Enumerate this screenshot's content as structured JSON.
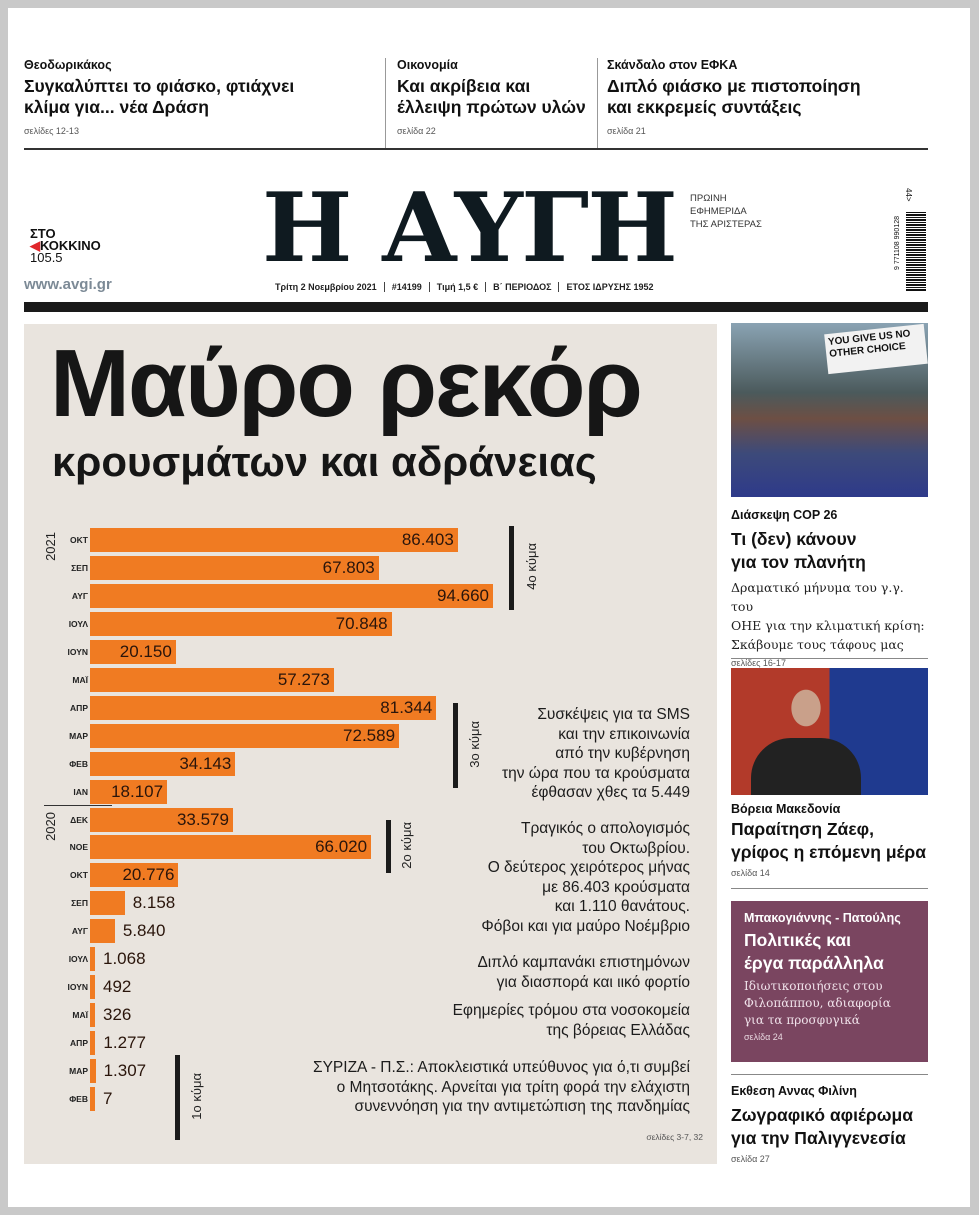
{
  "top_stories": [
    {
      "kicker": "Θεοδωρικάκος",
      "headline_1": "Συγκαλύπτει το φιάσκο, φτιάχνει",
      "headline_2": "κλίμα για... νέα Δράση",
      "ref": "σελίδες 12-13"
    },
    {
      "kicker": "Οικονομία",
      "headline_1": "Και ακρίβεια και",
      "headline_2": "έλλειψη πρώτων υλών",
      "ref": "σελίδα 22"
    },
    {
      "kicker": "Σκάνδαλο στον ΕΦΚΑ",
      "headline_1": "Διπλό φιάσκο με πιστοποίηση",
      "headline_2": "και εκκρεμείς συντάξεις",
      "ref": "σελίδα 21"
    }
  ],
  "masthead": {
    "title": "Η ΑΥΓΗ",
    "tagline": [
      "ΠΡΩΙΝΗ",
      "ΕΦΗΜΕΡΙΔΑ",
      "ΤΗΣ ΑΡΙΣΤΕΡΑΣ"
    ],
    "radio_logo": [
      "ΣΤΟ",
      "ΚΟΚΚΙΝΟ",
      "105.5"
    ],
    "website": "www.avgi.gr",
    "info": [
      "Τρίτη 2 Νοεμβρίου 2021",
      "#14199",
      "Τιμή 1,5 €",
      "Β΄ ΠΕΡΙΟΔΟΣ",
      "ΕΤΟΣ ΙΔΡΥΣΗΣ 1952"
    ],
    "barcode_digits": "9 771108 990128",
    "barcode_issue": "44>"
  },
  "main": {
    "headline": "Μαύρο ρεκόρ",
    "subheadline": "κρουσμάτων και αδράνειας",
    "blurbs": [
      [
        "Συσκέψεις για τα SMS",
        "και την επικοινωνία",
        "από την κυβέρνηση",
        "την ώρα που τα κρούσματα",
        "έφθασαν χθες τα 5.449"
      ],
      [
        "Τραγικός ο απολογισμός",
        "του Οκτωβρίου.",
        "Ο δεύτερος χειρότερος μήνας",
        "με 86.403 κρούσματα",
        "και 1.110 θανάτους.",
        "Φόβοι και για μαύρο Νοέμβριο"
      ],
      [
        "Διπλό καμπανάκι επιστημόνων",
        "για διασπορά και ιικό φορτίο"
      ],
      [
        "Εφημερίες τρόμου στα νοσοκομεία",
        "της βόρειας Ελλάδας"
      ],
      [
        "ΣΥΡΙΖΑ - Π.Σ.: Αποκλειστικά υπεύθυνος για ό,τι συμβεί",
        "ο Μητσοτάκης. Αρνείται για τρίτη φορά την ελάχιστη",
        "συνεννόηση για την αντιμετώπιση της πανδημίας"
      ]
    ],
    "ref": "σελίδες 3-7, 32"
  },
  "chart_data": {
    "type": "bar",
    "orientation": "horizontal",
    "bar_color": "#f07b22",
    "groups": [
      {
        "year": "2021",
        "categories": [
          "ΟΚΤ",
          "ΣΕΠ",
          "ΑΥΓ",
          "ΙΟΥΛ",
          "ΙΟΥΝ",
          "ΜΑΪ",
          "ΑΠΡ",
          "ΜΑΡ",
          "ΦΕΒ",
          "ΙΑΝ"
        ],
        "values": [
          86403,
          67803,
          94660,
          70848,
          20150,
          57273,
          81344,
          72589,
          34143,
          18107
        ]
      },
      {
        "year": "2020",
        "categories": [
          "ΔΕΚ",
          "ΝΟΕ",
          "ΟΚΤ",
          "ΣΕΠ",
          "ΑΥΓ",
          "ΙΟΥΛ",
          "ΙΟΥΝ",
          "ΜΑΪ",
          "ΑΠΡ",
          "ΜΑΡ",
          "ΦΕΒ"
        ],
        "values": [
          33579,
          66020,
          20776,
          8158,
          5840,
          1068,
          492,
          326,
          1277,
          1307,
          7
        ]
      }
    ],
    "annotations": [
      {
        "label": "4ο κύμα",
        "from": "ΟΚΤ 2021",
        "to": "ΑΥΓ 2021"
      },
      {
        "label": "3ο κύμα",
        "from": "ΑΠΡ 2021",
        "to": "ΦΕΒ 2021"
      },
      {
        "label": "2ο κύμα",
        "from": "ΔΕΚ 2020",
        "to": "ΝΟΕ 2020"
      },
      {
        "label": "1ο κύμα",
        "from": "ΑΠΡ 2020",
        "to": "ΦΕΒ 2020"
      }
    ]
  },
  "side": [
    {
      "kicker": "Διάσκεψη COP 26",
      "headline_1": "Τι (δεν) κάνουν",
      "headline_2": "για τον πλανήτη",
      "deck": [
        "Δραματικό μήνυμα του γ.γ. του",
        "ΟΗΕ για την κλιματική κρίση:",
        "Σκάβουμε τους τάφους μας"
      ],
      "ref": "σελίδες 16-17",
      "photo_sign": "YOU GIVE US NO OTHER CHOICE"
    },
    {
      "kicker": "Βόρεια Μακεδονία",
      "headline_1": "Παραίτηση Ζάεφ,",
      "headline_2": "γρίφος η επόμενη μέρα",
      "ref": "σελίδα 14"
    },
    {
      "kicker": "Μπακογιάννης - Πατούλης",
      "headline_1": "Πολιτικές και",
      "headline_2": "έργα παράλληλα",
      "deck": [
        "Ιδιωτικοποιήσεις στου",
        "Φιλοπάππου, αδιαφορία",
        "για τα προσφυγικά"
      ],
      "ref": "σελίδα 24",
      "bg": "#7a4560"
    },
    {
      "kicker": "Εκθεση Αννας Φιλίνη",
      "headline_1": "Ζωγραφικό αφιέρωμα",
      "headline_2": "για την Παλιγγενεσία",
      "ref": "σελίδα 27"
    }
  ]
}
